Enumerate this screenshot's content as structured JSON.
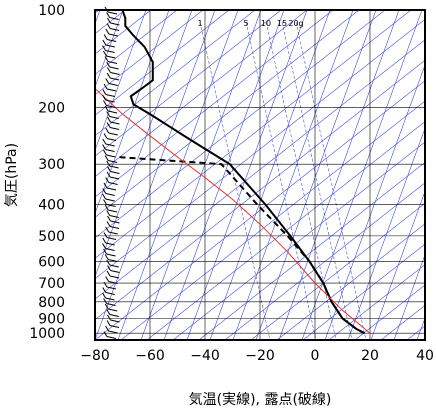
{
  "chart_data": {
    "type": "line",
    "title": "",
    "xlabel": "気温(実線), 露点(破線)",
    "ylabel": "気圧(hPa)",
    "xlim": [
      -80,
      40
    ],
    "ylim": [
      1050,
      100
    ],
    "y_scale": "log",
    "grid": true,
    "x_ticks": [
      -80,
      -60,
      -40,
      -20,
      0,
      20,
      40
    ],
    "x_tick_labels": [
      "−80",
      "−60",
      "−40",
      "−20",
      "0",
      "20",
      "40"
    ],
    "y_ticks": [
      100,
      200,
      300,
      400,
      500,
      600,
      700,
      800,
      900,
      1000
    ],
    "y_tick_labels": [
      "100",
      "200",
      "300",
      "400",
      "500",
      "600",
      "700",
      "800",
      "900",
      "1000"
    ],
    "mixing_ratio_labels": [
      "1",
      "5",
      "10",
      "15",
      "20g"
    ],
    "mixing_ratio_values": [
      1,
      5,
      10,
      15,
      20
    ],
    "series": [
      {
        "style": "solid",
        "color": "#000000",
        "points": [
          [
            18,
            1000
          ],
          [
            15,
            970
          ],
          [
            10,
            900
          ],
          [
            6,
            800
          ],
          [
            3,
            700
          ],
          [
            -2,
            600
          ],
          [
            -9,
            500
          ],
          [
            -18,
            400
          ],
          [
            -31,
            300
          ],
          [
            -46,
            250
          ],
          [
            -60,
            210
          ],
          [
            -66,
            196
          ],
          [
            -67,
            185
          ],
          [
            -63,
            175
          ],
          [
            -59,
            165
          ],
          [
            -59,
            145
          ],
          [
            -62,
            130
          ],
          [
            -66,
            120
          ],
          [
            -69,
            112
          ],
          [
            -69,
            106
          ],
          [
            -70,
            100
          ]
        ]
      },
      {
        "style": "dashed",
        "color": "#000000",
        "points": [
          [
            18,
            1000
          ],
          [
            15,
            970
          ],
          [
            10,
            900
          ],
          [
            6,
            800
          ],
          [
            3,
            700
          ],
          [
            -2,
            600
          ],
          [
            -10,
            500
          ],
          [
            -21,
            400
          ],
          [
            -34,
            300
          ],
          [
            -72,
            285
          ]
        ]
      },
      {
        "style": "solid",
        "color": "#e8302a",
        "points": [
          [
            20,
            1000
          ],
          [
            10,
            850
          ],
          [
            0,
            700
          ],
          [
            -10,
            560
          ],
          [
            -20,
            460
          ],
          [
            -30,
            385
          ],
          [
            -40,
            330
          ],
          [
            -50,
            285
          ],
          [
            -60,
            245
          ],
          [
            -70,
            210
          ],
          [
            -80,
            175
          ]
        ]
      }
    ]
  }
}
